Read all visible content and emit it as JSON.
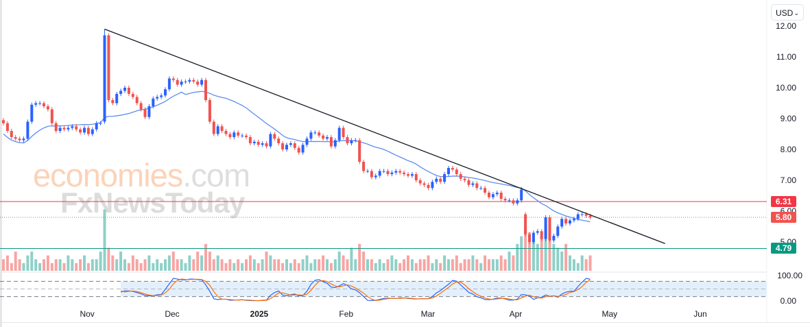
{
  "currency_selector": {
    "label": "USD"
  },
  "watermark": {
    "line1_a": "economies",
    "line1_b": ".com",
    "line2": "FxNewsToday"
  },
  "colors": {
    "up": "#2962ff",
    "down": "#ef5350",
    "ma": "#5b8def",
    "resistance": "#f23645",
    "support": "#089981",
    "last": "#ef5350",
    "trendline": "#131722",
    "stoch_k": "#2962ff",
    "stoch_d": "#ff6d00"
  },
  "chart_data": {
    "type": "candlestick",
    "price_axis": {
      "ylim": [
        4.6,
        12.1
      ],
      "ticks": [
        "12.00",
        "11.00",
        "10.00",
        "9.00",
        "8.00",
        "7.00",
        "6.00",
        "5.00"
      ]
    },
    "stoch_axis": {
      "ylim": [
        0,
        100
      ],
      "ticks": [
        "100.00",
        "0.00"
      ],
      "bands": [
        80,
        20
      ]
    },
    "time_axis": {
      "ticks": [
        {
          "label": "Nov",
          "bar": 20.7
        },
        {
          "label": "Dec",
          "bar": 41.7
        },
        {
          "label": "2025",
          "bar": 63.2,
          "bold": true
        },
        {
          "label": "Feb",
          "bar": 84.7
        },
        {
          "label": "Mar",
          "bar": 104.9
        },
        {
          "label": "Apr",
          "bar": 126.6
        },
        {
          "label": "May",
          "bar": 149.8
        },
        {
          "label": "Jun",
          "bar": 172.2
        }
      ]
    },
    "close": [
      8.85,
      8.6,
      8.4,
      8.35,
      8.3,
      8.35,
      8.9,
      9.45,
      9.5,
      9.5,
      9.4,
      9.3,
      8.85,
      8.6,
      8.7,
      8.65,
      8.7,
      8.75,
      8.65,
      8.55,
      8.7,
      8.5,
      8.65,
      8.85,
      8.85,
      11.7,
      9.6,
      9.5,
      9.8,
      9.9,
      10.0,
      9.8,
      9.7,
      9.5,
      9.3,
      9.05,
      9.4,
      9.65,
      9.7,
      9.75,
      9.95,
      10.3,
      10.25,
      10.1,
      10.2,
      10.2,
      10.25,
      10.2,
      10.1,
      10.25,
      9.6,
      8.9,
      8.5,
      8.75,
      8.6,
      8.5,
      8.4,
      8.55,
      8.45,
      8.45,
      8.4,
      8.2,
      8.25,
      8.15,
      8.2,
      8.1,
      8.5,
      8.35,
      8.2,
      8.0,
      8.15,
      8.2,
      8.05,
      7.9,
      8.15,
      8.35,
      8.55,
      8.55,
      8.45,
      8.35,
      8.4,
      8.1,
      8.3,
      8.7,
      8.4,
      8.2,
      8.3,
      8.3,
      7.6,
      7.3,
      7.3,
      7.1,
      7.15,
      7.3,
      7.3,
      7.2,
      7.25,
      7.3,
      7.25,
      7.2,
      7.15,
      7.2,
      7.0,
      6.9,
      6.85,
      6.75,
      6.95,
      7.05,
      6.95,
      7.2,
      7.4,
      7.35,
      7.2,
      7.05,
      7.0,
      6.85,
      6.9,
      6.75,
      6.75,
      6.6,
      6.45,
      6.55,
      6.6,
      6.4,
      6.35,
      6.35,
      6.25,
      6.35,
      6.7,
      5.25,
      5.0,
      5.3,
      5.35,
      5.1,
      5.8,
      5.05,
      5.2,
      5.5,
      5.75,
      5.6,
      5.7,
      5.75,
      5.9,
      5.9,
      5.85,
      5.8
    ],
    "volume": [
      3,
      4,
      2,
      5,
      3,
      2,
      4,
      5,
      3,
      2,
      3,
      4,
      2,
      3,
      3,
      2,
      4,
      3,
      2,
      3,
      4,
      2,
      3,
      3,
      5,
      16,
      6,
      4,
      3,
      5,
      3,
      2,
      4,
      3,
      2,
      3,
      4,
      2,
      3,
      2,
      3,
      4,
      5,
      3,
      3,
      2,
      4,
      3,
      5,
      4,
      7,
      5,
      3,
      4,
      3,
      2,
      3,
      2,
      3,
      2,
      3,
      4,
      3,
      2,
      3,
      5,
      4,
      3,
      3,
      2,
      3,
      2,
      3,
      2,
      3,
      4,
      2,
      3,
      3,
      4,
      3,
      2,
      3,
      5,
      4,
      3,
      6,
      3,
      7,
      5,
      3,
      3,
      2,
      3,
      2,
      3,
      4,
      3,
      2,
      3,
      4,
      3,
      2,
      3,
      3,
      4,
      2,
      3,
      2,
      4,
      3,
      3,
      4,
      2,
      3,
      3,
      4,
      3,
      2,
      4,
      3,
      3,
      3,
      4,
      3,
      5,
      4,
      7,
      9,
      11,
      10,
      8,
      7,
      9,
      12,
      8,
      7,
      6,
      5,
      7,
      4,
      3,
      2,
      4,
      3,
      4
    ],
    "ma_period": 20,
    "stoch_period": 14,
    "horizontal_levels": [
      {
        "name": "resistance",
        "value": 6.31,
        "label": "6.31"
      },
      {
        "name": "last-price",
        "value": 5.8,
        "label": "5.80"
      },
      {
        "name": "support",
        "value": 4.79,
        "label": "4.79"
      }
    ],
    "trendline": {
      "from": {
        "bar": 25,
        "price": 11.9
      },
      "to": {
        "bar": 163.5,
        "price": 4.95
      }
    }
  }
}
